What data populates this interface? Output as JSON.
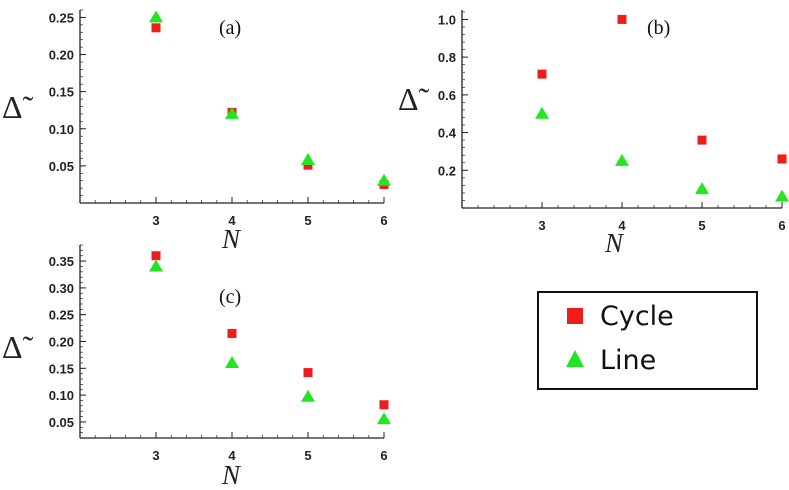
{
  "chart_data": [
    {
      "type": "scatter",
      "panel_label": "(a)",
      "xlabel": "N",
      "ylabel": "Δ̃",
      "x": [
        3,
        4,
        5,
        6
      ],
      "x_ticks": [
        "3",
        "4",
        "5",
        "6"
      ],
      "xlim": [
        2,
        6
      ],
      "ylim": [
        0,
        0.26
      ],
      "y_ticks": [
        "0.05",
        "0.10",
        "0.15",
        "0.20",
        "0.25"
      ],
      "y_tick_values": [
        0.05,
        0.1,
        0.15,
        0.2,
        0.25
      ],
      "series": [
        {
          "name": "Cycle",
          "values": [
            0.236,
            0.122,
            0.051,
            0.025
          ]
        },
        {
          "name": "Line",
          "values": [
            0.25,
            0.12,
            0.058,
            0.03
          ]
        }
      ]
    },
    {
      "type": "scatter",
      "panel_label": "(b)",
      "xlabel": "N",
      "ylabel": "Δ̃",
      "x": [
        3,
        4,
        5,
        6
      ],
      "x_ticks": [
        "3",
        "4",
        "5",
        "6"
      ],
      "xlim": [
        2,
        6
      ],
      "ylim": [
        0,
        1.05
      ],
      "y_ticks": [
        "0.2",
        "0.4",
        "0.6",
        "0.8",
        "1.0"
      ],
      "y_tick_values": [
        0.2,
        0.4,
        0.6,
        0.8,
        1.0
      ],
      "series": [
        {
          "name": "Cycle",
          "values": [
            0.71,
            1.0,
            0.36,
            0.26
          ]
        },
        {
          "name": "Line",
          "values": [
            0.5,
            0.25,
            0.1,
            0.06
          ]
        }
      ]
    },
    {
      "type": "scatter",
      "panel_label": "(c)",
      "xlabel": "N",
      "ylabel": "Δ̃",
      "x": [
        3,
        4,
        5,
        6
      ],
      "x_ticks": [
        "3",
        "4",
        "5",
        "6"
      ],
      "xlim": [
        2,
        6
      ],
      "ylim": [
        0.02,
        0.38
      ],
      "y_ticks": [
        "0.05",
        "0.10",
        "0.15",
        "0.20",
        "0.25",
        "0.30",
        "0.35"
      ],
      "y_tick_values": [
        0.05,
        0.1,
        0.15,
        0.2,
        0.25,
        0.3,
        0.35
      ],
      "series": [
        {
          "name": "Cycle",
          "values": [
            0.36,
            0.215,
            0.142,
            0.082
          ]
        },
        {
          "name": "Line",
          "values": [
            0.34,
            0.16,
            0.097,
            0.055
          ]
        }
      ]
    }
  ],
  "legend": {
    "items": [
      {
        "label": "Cycle",
        "marker": "square",
        "color": "#ee1c1c"
      },
      {
        "label": "Line",
        "marker": "triangle",
        "color": "#22e622"
      }
    ]
  },
  "colors": {
    "cycle": "#ee1c1c",
    "line": "#22e622"
  }
}
